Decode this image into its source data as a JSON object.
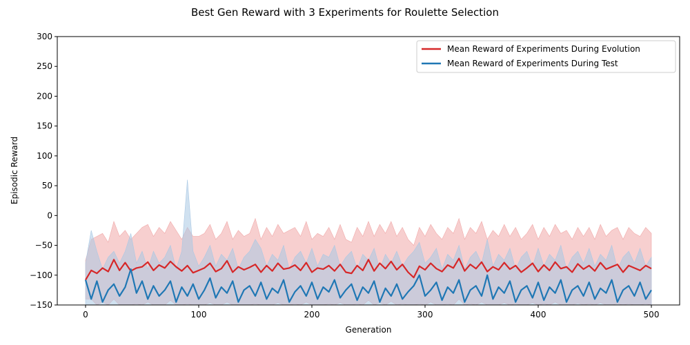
{
  "chart_data": {
    "type": "line",
    "title": "Best Gen Reward with 3 Experiments for Roulette Selection",
    "xlabel": "Generation",
    "ylabel": "Episodic Reward",
    "xlim": [
      -25,
      525
    ],
    "ylim": [
      -150,
      300
    ],
    "xticks": [
      0,
      100,
      200,
      300,
      400,
      500
    ],
    "yticks": [
      -150,
      -100,
      -50,
      0,
      50,
      100,
      150,
      200,
      250,
      300
    ],
    "grid": false,
    "legend_position": "top-right",
    "series": [
      {
        "name": "Mean Reward of Experiments During Evolution",
        "color": "#d62728",
        "band_color": "#f0a8a8",
        "x": [
          0,
          5,
          10,
          15,
          20,
          25,
          30,
          35,
          40,
          45,
          50,
          55,
          60,
          65,
          70,
          75,
          80,
          85,
          90,
          95,
          100,
          105,
          110,
          115,
          120,
          125,
          130,
          135,
          140,
          145,
          150,
          155,
          160,
          165,
          170,
          175,
          180,
          185,
          190,
          195,
          200,
          205,
          210,
          215,
          220,
          225,
          230,
          235,
          240,
          245,
          250,
          255,
          260,
          265,
          270,
          275,
          280,
          285,
          290,
          295,
          300,
          305,
          310,
          315,
          320,
          325,
          330,
          335,
          340,
          345,
          350,
          355,
          360,
          365,
          370,
          375,
          380,
          385,
          390,
          395,
          400,
          405,
          410,
          415,
          420,
          425,
          430,
          435,
          440,
          445,
          450,
          455,
          460,
          465,
          470,
          475,
          480,
          485,
          490,
          495,
          500
        ],
        "mean": [
          -108,
          -92,
          -97,
          -88,
          -94,
          -74,
          -92,
          -79,
          -93,
          -88,
          -86,
          -78,
          -92,
          -83,
          -88,
          -77,
          -86,
          -93,
          -84,
          -96,
          -92,
          -88,
          -80,
          -94,
          -89,
          -76,
          -95,
          -86,
          -91,
          -87,
          -82,
          -95,
          -84,
          -93,
          -80,
          -90,
          -88,
          -83,
          -92,
          -79,
          -95,
          -88,
          -90,
          -84,
          -93,
          -82,
          -95,
          -97,
          -84,
          -92,
          -74,
          -93,
          -80,
          -89,
          -77,
          -91,
          -82,
          -95,
          -104,
          -85,
          -91,
          -80,
          -89,
          -94,
          -83,
          -88,
          -72,
          -93,
          -82,
          -89,
          -78,
          -94,
          -86,
          -91,
          -79,
          -90,
          -84,
          -95,
          -88,
          -80,
          -94,
          -83,
          -92,
          -78,
          -89,
          -86,
          -95,
          -81,
          -90,
          -84,
          -93,
          -79,
          -90,
          -86,
          -82,
          -95,
          -84,
          -88,
          -92,
          -84,
          -89
        ],
        "upper": [
          -75,
          -40,
          -35,
          -30,
          -45,
          -10,
          -35,
          -25,
          -40,
          -30,
          -20,
          -15,
          -35,
          -20,
          -30,
          -10,
          -25,
          -40,
          -20,
          -35,
          -35,
          -30,
          -15,
          -40,
          -30,
          -10,
          -40,
          -25,
          -35,
          -30,
          -5,
          -40,
          -20,
          -35,
          -15,
          -30,
          -25,
          -20,
          -35,
          -10,
          -40,
          -30,
          -35,
          -20,
          -40,
          -15,
          -40,
          -45,
          -20,
          -35,
          -10,
          -35,
          -15,
          -30,
          -10,
          -35,
          -20,
          -40,
          -50,
          -20,
          -35,
          -15,
          -30,
          -40,
          -20,
          -30,
          -5,
          -40,
          -20,
          -30,
          -10,
          -40,
          -25,
          -35,
          -15,
          -35,
          -20,
          -40,
          -30,
          -15,
          -40,
          -20,
          -35,
          -15,
          -30,
          -25,
          -40,
          -20,
          -35,
          -20,
          -40,
          -15,
          -35,
          -25,
          -20,
          -40,
          -20,
          -30,
          -35,
          -20,
          -30
        ],
        "lower": [
          -140,
          -140,
          -150,
          -145,
          -150,
          -140,
          -150,
          -150,
          -150,
          -148,
          -150,
          -145,
          -150,
          -150,
          -150,
          -142,
          -150,
          -150,
          -148,
          -150,
          -150,
          -150,
          -146,
          -150,
          -150,
          -145,
          -150,
          -150,
          -150,
          -150,
          -148,
          -150,
          -150,
          -150,
          -146,
          -150,
          -150,
          -148,
          -150,
          -145,
          -150,
          -150,
          -150,
          -148,
          -150,
          -146,
          -150,
          -150,
          -148,
          -150,
          -142,
          -150,
          -146,
          -150,
          -144,
          -150,
          -148,
          -150,
          -150,
          -148,
          -150,
          -145,
          -150,
          -150,
          -148,
          -150,
          -140,
          -150,
          -148,
          -150,
          -145,
          -150,
          -150,
          -150,
          -146,
          -150,
          -148,
          -150,
          -150,
          -146,
          -150,
          -148,
          -150,
          -145,
          -150,
          -150,
          -150,
          -147,
          -150,
          -148,
          -150,
          -146,
          -150,
          -150,
          -148,
          -150,
          -148,
          -150,
          -150,
          -148,
          -150
        ]
      },
      {
        "name": "Mean Reward of Experiments During Test",
        "color": "#1f77b4",
        "band_color": "#a9c8e4",
        "x": [
          0,
          5,
          10,
          15,
          20,
          25,
          30,
          35,
          40,
          45,
          50,
          55,
          60,
          65,
          70,
          75,
          80,
          85,
          90,
          95,
          100,
          105,
          110,
          115,
          120,
          125,
          130,
          135,
          140,
          145,
          150,
          155,
          160,
          165,
          170,
          175,
          180,
          185,
          190,
          195,
          200,
          205,
          210,
          215,
          220,
          225,
          230,
          235,
          240,
          245,
          250,
          255,
          260,
          265,
          270,
          275,
          280,
          285,
          290,
          295,
          300,
          305,
          310,
          315,
          320,
          325,
          330,
          335,
          340,
          345,
          350,
          355,
          360,
          365,
          370,
          375,
          380,
          385,
          390,
          395,
          400,
          405,
          410,
          415,
          420,
          425,
          430,
          435,
          440,
          445,
          450,
          455,
          460,
          465,
          470,
          475,
          480,
          485,
          490,
          495,
          500
        ],
        "mean": [
          -108,
          -140,
          -110,
          -145,
          -125,
          -115,
          -135,
          -120,
          -90,
          -130,
          -110,
          -140,
          -118,
          -135,
          -125,
          -110,
          -145,
          -120,
          -135,
          -115,
          -140,
          -125,
          -105,
          -138,
          -120,
          -130,
          -110,
          -145,
          -125,
          -118,
          -135,
          -112,
          -140,
          -122,
          -130,
          -108,
          -145,
          -128,
          -118,
          -135,
          -112,
          -140,
          -120,
          -128,
          -108,
          -138,
          -125,
          -115,
          -142,
          -120,
          -130,
          -110,
          -145,
          -122,
          -135,
          -115,
          -140,
          -128,
          -118,
          -100,
          -135,
          -125,
          -112,
          -142,
          -120,
          -130,
          -108,
          -145,
          -125,
          -118,
          -135,
          -100,
          -140,
          -120,
          -130,
          -110,
          -145,
          -125,
          -118,
          -138,
          -112,
          -142,
          -120,
          -130,
          -108,
          -145,
          -125,
          -118,
          -135,
          -112,
          -140,
          -122,
          -130,
          -108,
          -145,
          -125,
          -118,
          -135,
          -112,
          -140,
          -125
        ],
        "upper": [
          -80,
          -25,
          -60,
          -90,
          -70,
          -60,
          -80,
          -60,
          -30,
          -80,
          -60,
          -90,
          -60,
          -80,
          -70,
          -50,
          -90,
          -60,
          60,
          -60,
          -85,
          -70,
          -50,
          -85,
          -65,
          -75,
          -55,
          -90,
          -70,
          -60,
          -40,
          -55,
          -85,
          -65,
          -75,
          -50,
          -90,
          -70,
          -60,
          -80,
          -55,
          -85,
          -65,
          -70,
          -50,
          -85,
          -70,
          -60,
          -90,
          -65,
          -75,
          -55,
          -90,
          -65,
          -80,
          -60,
          -85,
          -70,
          -60,
          -45,
          -80,
          -70,
          -55,
          -90,
          -65,
          -75,
          -50,
          -90,
          -70,
          -60,
          -80,
          -40,
          -85,
          -65,
          -75,
          -55,
          -90,
          -70,
          -60,
          -85,
          -55,
          -85,
          -65,
          -75,
          -50,
          -90,
          -70,
          -60,
          -80,
          -55,
          -85,
          -65,
          -75,
          -50,
          -90,
          -70,
          -60,
          -80,
          -55,
          -85,
          -70
        ],
        "lower": [
          -150,
          -150,
          -150,
          -150,
          -150,
          -150,
          -150,
          -150,
          -150,
          -150,
          -150,
          -150,
          -150,
          -150,
          -150,
          -150,
          -150,
          -150,
          -150,
          -150,
          -150,
          -150,
          -150,
          -150,
          -150,
          -150,
          -150,
          -150,
          -150,
          -150,
          -150,
          -150,
          -150,
          -150,
          -150,
          -150,
          -150,
          -150,
          -150,
          -150,
          -150,
          -150,
          -150,
          -150,
          -150,
          -150,
          -150,
          -150,
          -150,
          -150,
          -150,
          -150,
          -150,
          -150,
          -150,
          -150,
          -150,
          -150,
          -150,
          -150,
          -150,
          -150,
          -150,
          -150,
          -150,
          -150,
          -150,
          -150,
          -150,
          -150,
          -150,
          -150,
          -150,
          -150,
          -150,
          -150,
          -150,
          -150,
          -150,
          -150,
          -150,
          -150,
          -150,
          -150,
          -150,
          -150,
          -150,
          -150,
          -150,
          -150,
          -150,
          -150,
          -150,
          -150,
          -150,
          -150,
          -150,
          -150,
          -150,
          -150,
          -150
        ]
      }
    ]
  }
}
